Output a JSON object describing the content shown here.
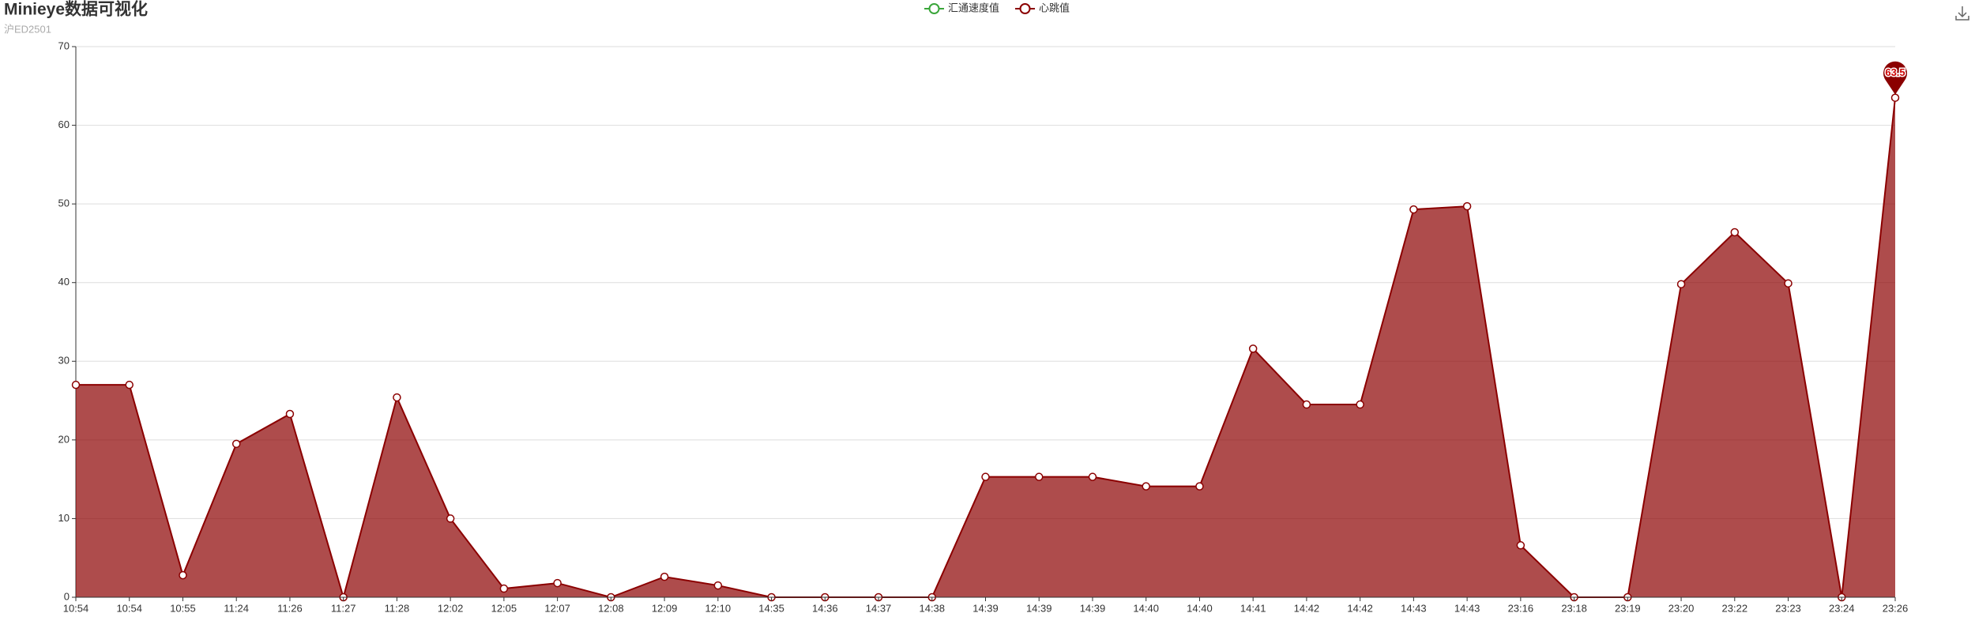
{
  "chart_data": {
    "type": "line",
    "title": "Minieye数据可视化",
    "subtitle": "沪ED2501",
    "categories": [
      "10:54",
      "10:54",
      "10:55",
      "11:24",
      "11:26",
      "11:27",
      "11:28",
      "12:02",
      "12:05",
      "12:07",
      "12:08",
      "12:09",
      "12:10",
      "14:35",
      "14:36",
      "14:37",
      "14:38",
      "14:39",
      "14:39",
      "14:39",
      "14:40",
      "14:40",
      "14:41",
      "14:42",
      "14:42",
      "14:43",
      "14:43",
      "23:16",
      "23:18",
      "23:19",
      "23:20",
      "23:22",
      "23:23",
      "23:24",
      "23:26"
    ],
    "series": [
      {
        "name": "汇通速度值",
        "color": "#3aa63a",
        "values": [
          null,
          null,
          null,
          null,
          null,
          null,
          null,
          null,
          null,
          null,
          null,
          null,
          null,
          null,
          null,
          null,
          null,
          null,
          null,
          null,
          null,
          null,
          null,
          null,
          null,
          null,
          null,
          null,
          null,
          null,
          null,
          null,
          null,
          null,
          null
        ]
      },
      {
        "name": "心跳值",
        "color": "#8b0000",
        "area": true,
        "values": [
          27,
          27,
          2.8,
          19.5,
          23.3,
          0,
          25.4,
          10,
          1.1,
          1.8,
          0,
          2.6,
          1.5,
          0,
          0,
          0,
          0,
          15.3,
          15.3,
          15.3,
          14.1,
          14.1,
          31.6,
          24.5,
          24.5,
          49.3,
          49.7,
          6.6,
          0,
          0,
          39.8,
          46.4,
          39.9,
          0,
          63.5
        ]
      }
    ],
    "ylim": [
      0,
      70
    ],
    "yticks": [
      0,
      10,
      20,
      30,
      40,
      50,
      60,
      70
    ],
    "grid": true
  }
}
